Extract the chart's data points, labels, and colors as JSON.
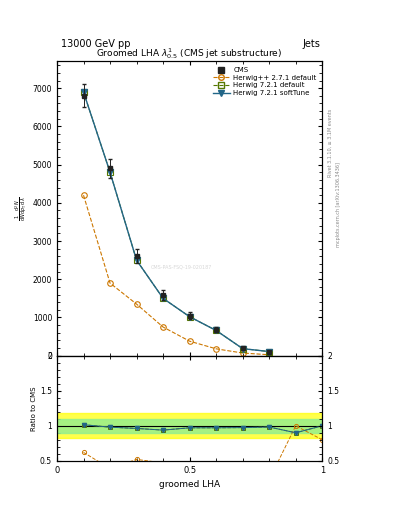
{
  "title": "13000 GeV pp",
  "title_right": "Jets",
  "plot_title": "Groomed LHA $\\lambda^{1}_{0.5}$ (CMS jet substructure)",
  "xlabel": "groomed LHA",
  "ylabel": "$\\frac{1}{\\mathrm{d}N} \\frac{\\mathrm{d}^2N}{\\mathrm{d}p_\\mathrm{T}\\,\\mathrm{d}\\lambda}$",
  "ylabel_ratio": "Ratio to CMS",
  "right_label_top": "Rivet 3.1.10, ≥ 3.1M events",
  "right_label_bottom": "mcplots.cern.ch [arXiv:1306.3436]",
  "watermark": "CMS-PAS-FSQ-19-020187",
  "cms_x": [
    0.1,
    0.2,
    0.3,
    0.4,
    0.5,
    0.6,
    0.7,
    0.8
  ],
  "cms_y": [
    6800,
    4900,
    2600,
    1600,
    1050,
    680,
    190,
    110
  ],
  "cms_yerr": [
    300,
    250,
    180,
    130,
    90,
    60,
    25,
    18
  ],
  "herwig_pp_x": [
    0.1,
    0.2,
    0.3,
    0.4,
    0.5,
    0.6,
    0.7,
    0.8
  ],
  "herwig_pp_y": [
    4200,
    1900,
    1350,
    750,
    380,
    180,
    70,
    25
  ],
  "herwig721d_x": [
    0.1,
    0.2,
    0.3,
    0.4,
    0.5,
    0.6,
    0.7,
    0.8
  ],
  "herwig721d_y": [
    6900,
    4800,
    2500,
    1500,
    1020,
    660,
    185,
    108
  ],
  "herwig721s_x": [
    0.1,
    0.2,
    0.3,
    0.4,
    0.5,
    0.6,
    0.7,
    0.8
  ],
  "herwig721s_y": [
    6900,
    4800,
    2500,
    1500,
    1020,
    660,
    185,
    108
  ],
  "ratio_x": [
    0.05,
    0.15,
    0.25,
    0.35,
    0.45,
    0.55,
    0.65,
    0.75,
    0.85,
    0.95
  ],
  "band_yellow_lo": 0.82,
  "band_yellow_hi": 1.18,
  "band_green_lo": 0.9,
  "band_green_hi": 1.1,
  "cms_color": "#222222",
  "herwig_pp_color": "#cc7700",
  "herwig721d_color": "#557700",
  "herwig721s_color": "#226688",
  "bg_color": "#ffffff",
  "ylim_main": [
    0,
    7700
  ],
  "ylim_ratio": [
    0.5,
    2.0
  ],
  "xlim": [
    0.0,
    1.0
  ],
  "yticks_main": [
    0,
    1000,
    2000,
    3000,
    4000,
    5000,
    6000,
    7000
  ],
  "ytick_labels_main": [
    "0",
    "1000",
    "2000",
    "3000",
    "4000",
    "5000",
    "6000",
    "7000"
  ],
  "yticks_ratio": [
    0.5,
    1.0,
    1.5,
    2.0
  ],
  "ytick_labels_ratio": [
    "0.5",
    "1",
    "1.5",
    "2"
  ],
  "xticks": [
    0.0,
    0.5,
    1.0
  ],
  "xtick_labels": [
    "0",
    "0.5",
    "1"
  ]
}
